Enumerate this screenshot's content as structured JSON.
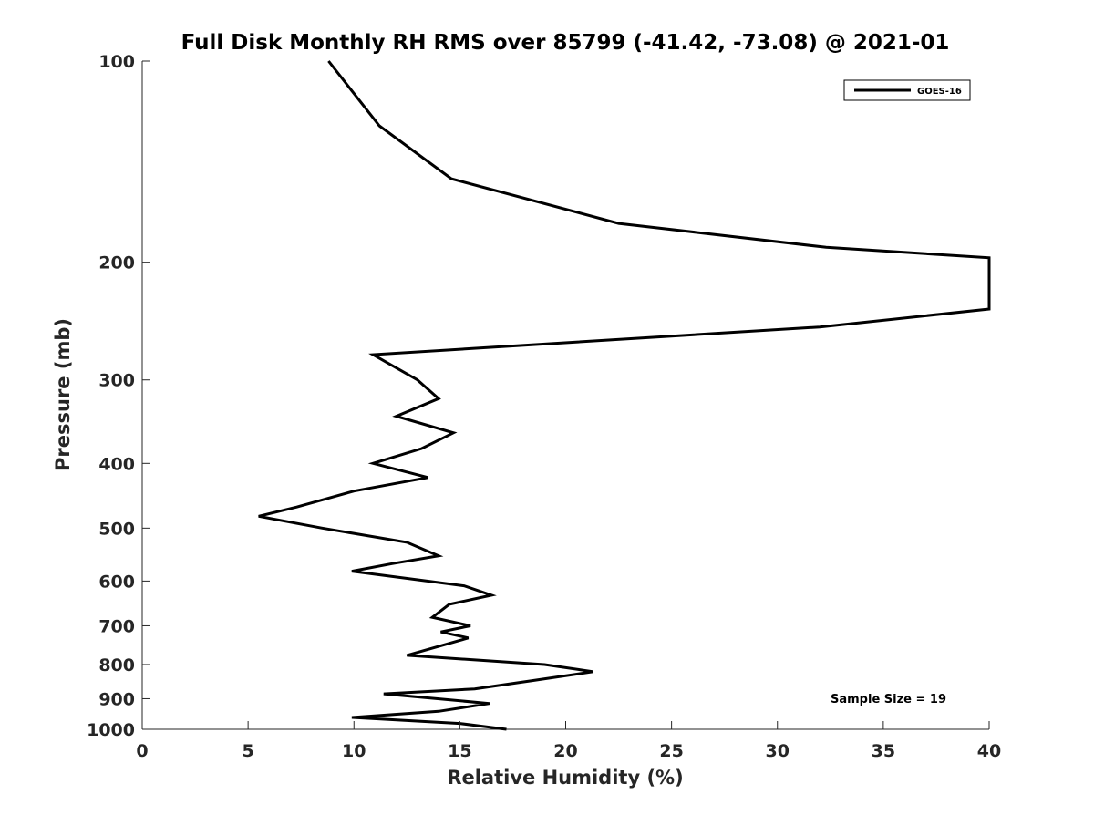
{
  "chart_data": {
    "type": "line",
    "title": "Full Disk Monthly RH RMS over 85799 (-41.42, -73.08) @ 2021-01",
    "xlabel": "Relative Humidity (%)",
    "ylabel": "Pressure (mb)",
    "xlim": [
      0,
      40
    ],
    "ylim": [
      100,
      1000
    ],
    "y_scale": "log",
    "y_reversed": true,
    "grid": false,
    "legend_position": "top-right",
    "x_ticks": [
      0,
      5,
      10,
      15,
      20,
      25,
      30,
      35,
      40
    ],
    "y_ticks": [
      100,
      200,
      300,
      400,
      500,
      600,
      700,
      800,
      900,
      1000
    ],
    "series": [
      {
        "name": "GOES-16",
        "color": "#000000",
        "points": [
          [
            8.8,
            100
          ],
          [
            11.2,
            125
          ],
          [
            14.6,
            150
          ],
          [
            22.5,
            175
          ],
          [
            32.3,
            190
          ],
          [
            40.0,
            197
          ],
          [
            40.0,
            235
          ],
          [
            32.0,
            250
          ],
          [
            10.9,
            275
          ],
          [
            13.0,
            300
          ],
          [
            14.0,
            320
          ],
          [
            12.0,
            340
          ],
          [
            14.7,
            360
          ],
          [
            13.2,
            380
          ],
          [
            10.9,
            400
          ],
          [
            13.5,
            420
          ],
          [
            10.0,
            440
          ],
          [
            7.3,
            465
          ],
          [
            5.5,
            480
          ],
          [
            8.5,
            500
          ],
          [
            12.5,
            525
          ],
          [
            14.0,
            550
          ],
          [
            11.8,
            565
          ],
          [
            9.9,
            580
          ],
          [
            15.2,
            610
          ],
          [
            16.5,
            630
          ],
          [
            14.5,
            650
          ],
          [
            14.1,
            665
          ],
          [
            13.7,
            680
          ],
          [
            15.5,
            700
          ],
          [
            14.1,
            715
          ],
          [
            15.4,
            730
          ],
          [
            12.5,
            775
          ],
          [
            19.0,
            800
          ],
          [
            21.3,
            820
          ],
          [
            18.5,
            845
          ],
          [
            15.7,
            870
          ],
          [
            11.4,
            885
          ],
          [
            16.4,
            915
          ],
          [
            14.0,
            940
          ],
          [
            9.9,
            960
          ],
          [
            15.0,
            980
          ],
          [
            17.2,
            1000
          ]
        ]
      }
    ],
    "annotation": "Sample Size = 19"
  }
}
